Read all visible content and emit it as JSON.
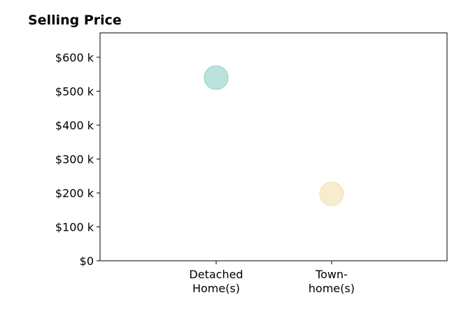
{
  "chart_data": {
    "type": "scatter",
    "title": "Selling Price",
    "xlabel": "",
    "ylabel": "",
    "categories": [
      {
        "lines": [
          "Detached",
          "Home(s)"
        ]
      },
      {
        "lines": [
          "Town-",
          "home(s)"
        ]
      }
    ],
    "points": [
      {
        "category_index": 0,
        "value": 540000,
        "color": "#8ecfc7"
      },
      {
        "category_index": 1,
        "value": 197000,
        "color": "#f3dfaf"
      }
    ],
    "ylim": [
      0,
      672000
    ],
    "yticks": [
      0,
      100000,
      200000,
      300000,
      400000,
      500000,
      600000
    ],
    "ytick_labels": [
      "$0",
      "$100 k",
      "$200 k",
      "$300 k",
      "$400 k",
      "$500 k",
      "$600 k"
    ],
    "grid": false,
    "legend": "none"
  }
}
